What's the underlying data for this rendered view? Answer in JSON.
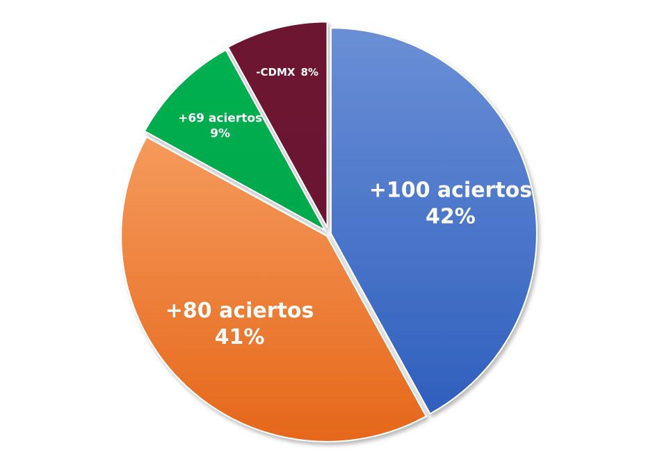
{
  "chart_data": {
    "type": "pie",
    "exploded": true,
    "slices": [
      {
        "name": "+100 aciertos",
        "value": 42,
        "pct_label": "42%",
        "color": "#4472C4",
        "label_style": "large"
      },
      {
        "name": "+80 aciertos",
        "value": 41,
        "pct_label": "41%",
        "color": "#ED7D31",
        "label_style": "large"
      },
      {
        "name": "+69 aciertos",
        "value": 9,
        "pct_label": "9%",
        "color": "#00B050",
        "label_style": "small"
      },
      {
        "name": "-CDMX",
        "value": 8,
        "pct_label": "8%",
        "color": "#6D1530",
        "label_style": "inline"
      }
    ]
  }
}
